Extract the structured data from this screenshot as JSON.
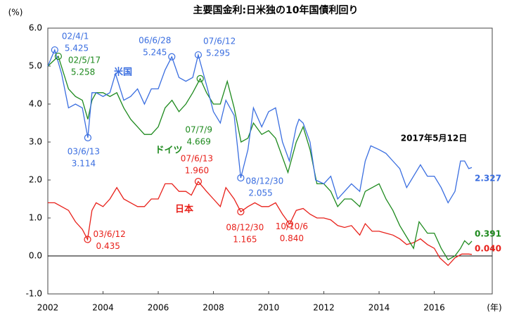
{
  "chart_data": {
    "type": "line",
    "title": "主要国金利:日米独の10年国債利回り",
    "y_unit": "(%)",
    "x_unit": "(年)",
    "date_note": "2017年5月12日",
    "xlim": [
      2002,
      2018.1
    ],
    "xticks": [
      2002,
      2004,
      2006,
      2008,
      2010,
      2012,
      2014,
      2016
    ],
    "ylim": [
      -1,
      6
    ],
    "yticks": [
      {
        "value": 6,
        "label": "6.0"
      },
      {
        "value": 5,
        "label": "5.0"
      },
      {
        "value": 4,
        "label": "4.0"
      },
      {
        "value": 3,
        "label": "3.0"
      },
      {
        "value": 2,
        "label": "2.0"
      },
      {
        "value": 1,
        "label": "1.0"
      },
      {
        "value": 0,
        "label": "0.0"
      },
      {
        "value": -1,
        "label": "-1.0"
      }
    ],
    "series": [
      {
        "name": "米国",
        "color": "#3a6ee0",
        "end_label": "2.327",
        "x": [
          2002.0,
          2002.25,
          2002.5,
          2002.75,
          2003.0,
          2003.25,
          2003.45,
          2003.6,
          2003.75,
          2004.0,
          2004.25,
          2004.45,
          2004.75,
          2005.0,
          2005.25,
          2005.5,
          2005.75,
          2006.0,
          2006.25,
          2006.49,
          2006.75,
          2007.0,
          2007.25,
          2007.45,
          2007.75,
          2008.0,
          2008.25,
          2008.45,
          2008.75,
          2008.99,
          2009.25,
          2009.45,
          2009.75,
          2010.0,
          2010.25,
          2010.5,
          2010.75,
          2011.0,
          2011.1,
          2011.25,
          2011.5,
          2011.7,
          2012.0,
          2012.25,
          2012.5,
          2012.75,
          2013.0,
          2013.3,
          2013.5,
          2013.7,
          2014.0,
          2014.25,
          2014.5,
          2014.75,
          2015.0,
          2015.25,
          2015.5,
          2015.75,
          2016.0,
          2016.25,
          2016.5,
          2016.75,
          2016.95,
          2017.1,
          2017.25,
          2017.36
        ],
        "values": [
          5.0,
          5.425,
          4.8,
          3.9,
          4.0,
          3.9,
          3.114,
          4.3,
          4.3,
          4.2,
          4.3,
          4.8,
          4.1,
          4.2,
          4.4,
          4.0,
          4.4,
          4.4,
          4.9,
          5.245,
          4.7,
          4.6,
          4.7,
          5.295,
          4.5,
          3.8,
          3.5,
          4.1,
          3.7,
          2.055,
          2.8,
          3.9,
          3.4,
          3.8,
          3.9,
          3.0,
          2.5,
          3.4,
          3.6,
          3.5,
          3.0,
          2.0,
          1.9,
          2.1,
          1.5,
          1.7,
          1.9,
          1.7,
          2.5,
          2.9,
          2.8,
          2.7,
          2.5,
          2.3,
          1.8,
          2.1,
          2.4,
          2.1,
          2.1,
          1.8,
          1.4,
          1.7,
          2.5,
          2.5,
          2.3,
          2.327
        ]
      },
      {
        "name": "ドイツ",
        "color": "#1e8a1e",
        "end_label": "0.391",
        "x": [
          2002.0,
          2002.38,
          2002.75,
          2003.0,
          2003.25,
          2003.45,
          2003.6,
          2003.75,
          2004.0,
          2004.25,
          2004.5,
          2004.75,
          2005.0,
          2005.25,
          2005.5,
          2005.75,
          2006.0,
          2006.25,
          2006.5,
          2006.75,
          2007.0,
          2007.25,
          2007.52,
          2007.75,
          2008.0,
          2008.25,
          2008.5,
          2008.75,
          2009.0,
          2009.25,
          2009.45,
          2009.75,
          2010.0,
          2010.25,
          2010.5,
          2010.7,
          2011.0,
          2011.25,
          2011.5,
          2011.75,
          2012.0,
          2012.25,
          2012.5,
          2012.75,
          2013.0,
          2013.3,
          2013.5,
          2013.75,
          2014.0,
          2014.25,
          2014.5,
          2014.75,
          2015.0,
          2015.25,
          2015.45,
          2015.75,
          2016.0,
          2016.25,
          2016.5,
          2016.75,
          2016.95,
          2017.1,
          2017.25,
          2017.36
        ],
        "values": [
          5.0,
          5.258,
          4.4,
          4.2,
          4.1,
          3.6,
          4.1,
          4.3,
          4.3,
          4.2,
          4.3,
          3.9,
          3.6,
          3.4,
          3.2,
          3.2,
          3.4,
          3.9,
          4.1,
          3.8,
          4.0,
          4.3,
          4.669,
          4.3,
          4.0,
          4.0,
          4.6,
          3.9,
          3.0,
          3.1,
          3.5,
          3.2,
          3.3,
          3.1,
          2.6,
          2.2,
          3.0,
          3.4,
          2.8,
          1.9,
          1.9,
          1.7,
          1.3,
          1.5,
          1.5,
          1.3,
          1.7,
          1.8,
          1.9,
          1.5,
          1.2,
          0.8,
          0.5,
          0.2,
          0.9,
          0.6,
          0.6,
          0.2,
          -0.1,
          0.0,
          0.2,
          0.4,
          0.3,
          0.391
        ]
      },
      {
        "name": "日本",
        "color": "#e8201a",
        "end_label": "0.040",
        "x": [
          2002.0,
          2002.25,
          2002.5,
          2002.75,
          2003.0,
          2003.25,
          2003.44,
          2003.6,
          2003.75,
          2004.0,
          2004.25,
          2004.5,
          2004.75,
          2005.0,
          2005.25,
          2005.5,
          2005.75,
          2006.0,
          2006.25,
          2006.5,
          2006.75,
          2007.0,
          2007.2,
          2007.45,
          2007.75,
          2008.0,
          2008.25,
          2008.45,
          2008.75,
          2008.99,
          2009.25,
          2009.5,
          2009.75,
          2010.0,
          2010.25,
          2010.5,
          2010.76,
          2011.0,
          2011.25,
          2011.5,
          2011.75,
          2012.0,
          2012.25,
          2012.5,
          2012.75,
          2013.0,
          2013.3,
          2013.5,
          2013.75,
          2014.0,
          2014.25,
          2014.5,
          2014.75,
          2015.0,
          2015.25,
          2015.5,
          2015.75,
          2016.0,
          2016.2,
          2016.5,
          2016.75,
          2017.0,
          2017.25,
          2017.36
        ],
        "values": [
          1.4,
          1.4,
          1.3,
          1.2,
          0.9,
          0.7,
          0.435,
          1.2,
          1.4,
          1.3,
          1.5,
          1.8,
          1.5,
          1.4,
          1.3,
          1.3,
          1.5,
          1.5,
          1.9,
          1.9,
          1.7,
          1.7,
          1.6,
          1.96,
          1.7,
          1.5,
          1.3,
          1.8,
          1.5,
          1.165,
          1.3,
          1.4,
          1.3,
          1.3,
          1.4,
          1.1,
          0.84,
          1.2,
          1.25,
          1.1,
          1.0,
          1.0,
          0.95,
          0.8,
          0.75,
          0.8,
          0.55,
          0.85,
          0.65,
          0.65,
          0.6,
          0.55,
          0.45,
          0.3,
          0.35,
          0.45,
          0.3,
          0.2,
          -0.05,
          -0.25,
          -0.05,
          0.05,
          0.05,
          0.04
        ]
      }
    ],
    "annotations": [
      {
        "label": "02/4/1",
        "x": 2002.25,
        "value": 5.425,
        "value_label": "5.425",
        "color": "#3a6ee0"
      },
      {
        "label": "02/5/17",
        "x": 2002.38,
        "value": 5.258,
        "value_label": "5.258",
        "color": "#1e8a1e"
      },
      {
        "label": "03/6/13",
        "x": 2003.45,
        "value": 3.114,
        "value_label": "3.114",
        "color": "#3a6ee0"
      },
      {
        "label": "06/6/28",
        "x": 2006.49,
        "value": 5.245,
        "value_label": "5.245",
        "color": "#3a6ee0"
      },
      {
        "label": "07/6/12",
        "x": 2007.45,
        "value": 5.295,
        "value_label": "5.295",
        "color": "#3a6ee0"
      },
      {
        "label": "07/7/9",
        "x": 2007.52,
        "value": 4.669,
        "value_label": "4.669",
        "color": "#1e8a1e"
      },
      {
        "label": "03/6/12",
        "x": 2003.44,
        "value": 0.435,
        "value_label": "0.435",
        "color": "#e8201a"
      },
      {
        "label": "07/6/13",
        "x": 2007.45,
        "value": 1.96,
        "value_label": "1.960",
        "color": "#e8201a"
      },
      {
        "label": "08/12/30",
        "x": 2008.99,
        "value": 1.165,
        "value_label": "1.165",
        "color": "#e8201a"
      },
      {
        "label": "08/12/30",
        "x": 2008.99,
        "value": 2.055,
        "value_label": "2.055",
        "color": "#3a6ee0"
      },
      {
        "label": "10/10/6",
        "x": 2010.76,
        "value": 0.84,
        "value_label": "0.840",
        "color": "#e8201a"
      }
    ]
  }
}
